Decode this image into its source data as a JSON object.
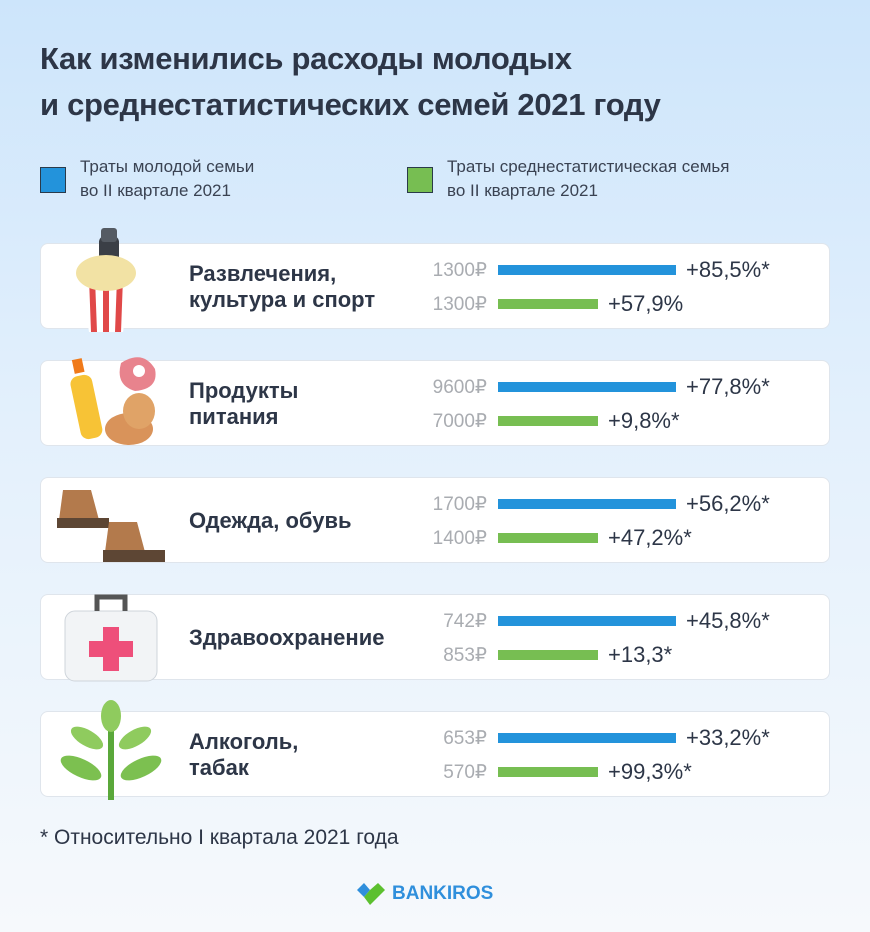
{
  "title_line1": "Как изменились расходы молодых",
  "title_line2": "и среднестатистических семей 2021 году",
  "colors": {
    "young": "#2393db",
    "average": "#77be52"
  },
  "chart_data": {
    "type": "bar",
    "title": "Как изменились расходы молодых и среднестатистических семей 2021 году",
    "legend": [
      {
        "line1": "Траты молодой семьи",
        "line2": "во II квартале 2021"
      },
      {
        "line1": "Траты среднестатистическая семья",
        "line2": "во II квартале 2021"
      }
    ],
    "legend_placement": "top",
    "categories": [
      {
        "label1": "Развлечения,",
        "label2": "культура и спорт",
        "icon": "popcorn-and-bottle-icon",
        "young": {
          "value": "1300₽",
          "change": "+85,5%*"
        },
        "average": {
          "value": "1300₽",
          "change": "+57,9%"
        }
      },
      {
        "label1": "Продукты",
        "label2": "питания",
        "icon": "groceries-icon",
        "young": {
          "value": "9600₽",
          "change": "+77,8%*"
        },
        "average": {
          "value": "7000₽",
          "change": "+9,8%*"
        }
      },
      {
        "label1": "Одежда, обувь",
        "label2": "",
        "icon": "boots-icon",
        "young": {
          "value": "1700₽",
          "change": "+56,2%*"
        },
        "average": {
          "value": "1400₽",
          "change": "+47,2%*"
        }
      },
      {
        "label1": "Здравоохранение",
        "label2": "",
        "icon": "first-aid-kit-icon",
        "young": {
          "value": "742₽",
          "change": "+45,8%*"
        },
        "average": {
          "value": "853₽",
          "change": "+13,3*"
        }
      },
      {
        "label1": "Алкоголь,",
        "label2": "табак",
        "icon": "plant-icon",
        "young": {
          "value": "653₽",
          "change": "+33,2%*"
        },
        "average": {
          "value": "570₽",
          "change": "+99,3%*"
        }
      }
    ]
  },
  "footnote": "* Относительно I квартала 2021 года",
  "logo_text": "BANKIROS"
}
